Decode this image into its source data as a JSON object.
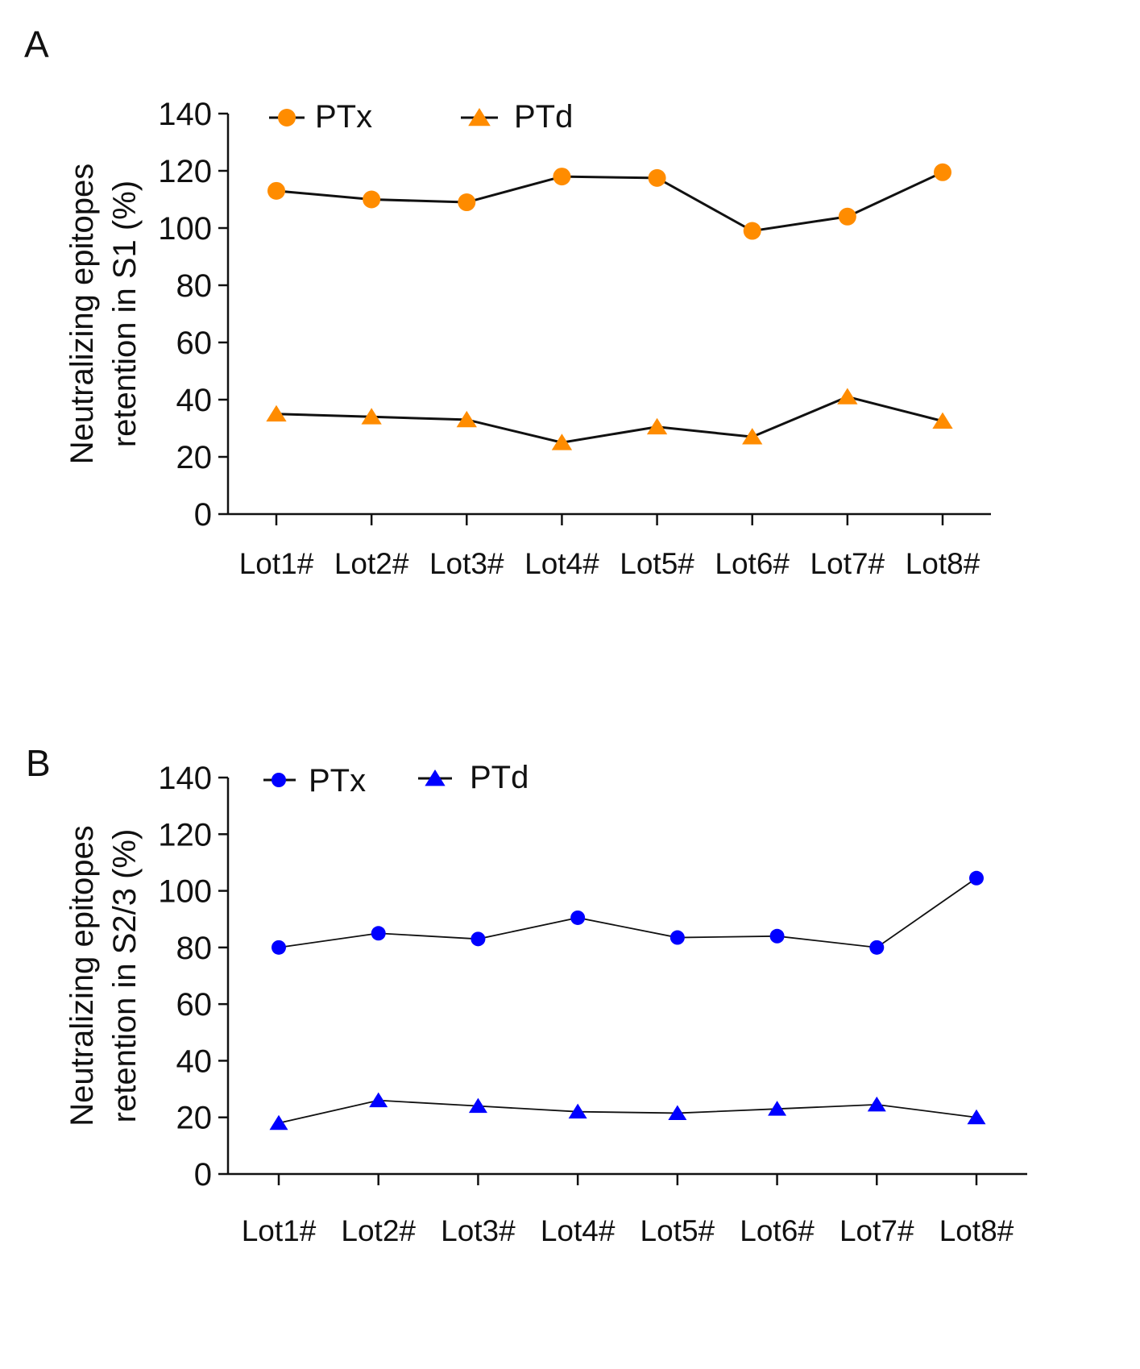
{
  "panels": {
    "a": {
      "label": "A"
    },
    "b": {
      "label": "B"
    }
  },
  "chart_data": [
    {
      "type": "line",
      "panel": "A",
      "ylabel_line1": "Neutralizing epitopes",
      "ylabel_line2": "retention in S1 (%)",
      "xlabel": "",
      "categories": [
        "Lot1#",
        "Lot2#",
        "Lot3#",
        "Lot4#",
        "Lot5#",
        "Lot6#",
        "Lot7#",
        "Lot8#"
      ],
      "ylim": [
        0,
        140
      ],
      "yticks": [
        "0",
        "20",
        "40",
        "60",
        "80",
        "100",
        "120",
        "140"
      ],
      "legend_position": "top-left",
      "series": [
        {
          "name": "PTx",
          "marker": "circle",
          "color": "#ff8c00",
          "values": [
            113,
            110,
            109,
            118,
            117.5,
            99,
            104,
            119.5
          ]
        },
        {
          "name": "PTd",
          "marker": "triangle",
          "color": "#ff8c00",
          "values": [
            35,
            34,
            33,
            25,
            30.5,
            27,
            41,
            32.5
          ]
        }
      ]
    },
    {
      "type": "line",
      "panel": "B",
      "ylabel_line1": "Neutralizing epitopes",
      "ylabel_line2": "retention in S2/3 (%)",
      "xlabel": "",
      "categories": [
        "Lot1#",
        "Lot2#",
        "Lot3#",
        "Lot4#",
        "Lot5#",
        "Lot6#",
        "Lot7#",
        "Lot8#"
      ],
      "ylim": [
        0,
        140
      ],
      "yticks": [
        "0",
        "20",
        "40",
        "60",
        "80",
        "100",
        "120",
        "140"
      ],
      "legend_position": "top-left",
      "series": [
        {
          "name": "PTx",
          "marker": "circle",
          "color": "#0000ff",
          "values": [
            80,
            85,
            83,
            90.5,
            83.5,
            84,
            80,
            104.5
          ]
        },
        {
          "name": "PTd",
          "marker": "triangle",
          "color": "#0000ff",
          "values": [
            18,
            26,
            24,
            22,
            21.5,
            23,
            24.5,
            20
          ]
        }
      ]
    }
  ]
}
